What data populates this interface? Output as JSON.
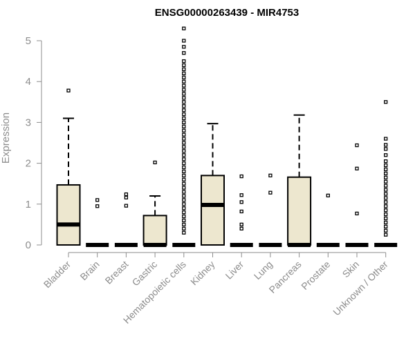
{
  "chart_data": {
    "type": "boxplot",
    "title": "ENSG00000263439 - MIR4753",
    "xlabel": "",
    "ylabel": "Expression",
    "ylim": [
      0,
      5.3
    ],
    "yticks": [
      0,
      1,
      2,
      3,
      4,
      5
    ],
    "grid": false,
    "box_color": "#ede7cf",
    "categories": [
      "Bladder",
      "Brain",
      "Breast",
      "Gastric",
      "Hematopoietic cells",
      "Kidney",
      "Liver",
      "Lung",
      "Pancreas",
      "Prostate",
      "Skin",
      "Unknown / Other"
    ],
    "boxes": [
      {
        "q1": 0,
        "median": 0.5,
        "q3": 1.47,
        "whisker_low": 0,
        "whisker_high": 3.1,
        "outliers": [
          3.78
        ]
      },
      {
        "q1": 0,
        "median": 0,
        "q3": 0,
        "whisker_low": 0,
        "whisker_high": 0,
        "outliers": [
          0.95,
          1.1
        ]
      },
      {
        "q1": 0,
        "median": 0,
        "q3": 0,
        "whisker_low": 0,
        "whisker_high": 0,
        "outliers": [
          0.96,
          1.16,
          1.24
        ]
      },
      {
        "q1": 0,
        "median": 0,
        "q3": 0.72,
        "whisker_low": 0,
        "whisker_high": 1.2,
        "outliers": [
          2.02
        ]
      },
      {
        "q1": 0,
        "median": 0,
        "q3": 0,
        "whisker_low": 0,
        "whisker_high": 0,
        "outliers": [
          0.3,
          0.4,
          0.5,
          0.6,
          0.7,
          0.8,
          0.9,
          1.0,
          1.1,
          1.2,
          1.3,
          1.4,
          1.5,
          1.6,
          1.7,
          1.8,
          1.9,
          2.0,
          2.1,
          2.2,
          2.3,
          2.4,
          2.5,
          2.6,
          2.7,
          2.8,
          2.9,
          3.0,
          3.1,
          3.2,
          3.3,
          3.4,
          3.5,
          3.6,
          3.7,
          3.8,
          3.9,
          4.0,
          4.1,
          4.2,
          4.3,
          4.4,
          4.5,
          4.7,
          4.85,
          5.0,
          5.3
        ]
      },
      {
        "q1": 0,
        "median": 0.98,
        "q3": 1.7,
        "whisker_low": 0,
        "whisker_high": 2.97,
        "outliers": []
      },
      {
        "q1": 0,
        "median": 0,
        "q3": 0,
        "whisker_low": 0,
        "whisker_high": 0,
        "outliers": [
          0.4,
          0.5,
          0.82,
          1.05,
          1.22,
          1.68
        ]
      },
      {
        "q1": 0,
        "median": 0,
        "q3": 0,
        "whisker_low": 0,
        "whisker_high": 0,
        "outliers": [
          1.28,
          1.7
        ]
      },
      {
        "q1": 0,
        "median": 0,
        "q3": 1.66,
        "whisker_low": 0,
        "whisker_high": 3.18,
        "outliers": []
      },
      {
        "q1": 0,
        "median": 0,
        "q3": 0,
        "whisker_low": 0,
        "whisker_high": 0,
        "outliers": [
          1.21
        ]
      },
      {
        "q1": 0,
        "median": 0,
        "q3": 0,
        "whisker_low": 0,
        "whisker_high": 0,
        "outliers": [
          0.77,
          1.87,
          2.44
        ]
      },
      {
        "q1": 0,
        "median": 0,
        "q3": 0,
        "whisker_low": 0,
        "whisker_high": 0,
        "outliers": [
          0.25,
          0.35,
          0.45,
          0.55,
          0.65,
          0.75,
          0.85,
          0.95,
          1.05,
          1.15,
          1.25,
          1.35,
          1.45,
          1.55,
          1.65,
          1.75,
          1.85,
          1.95,
          2.05,
          2.2,
          2.35,
          2.45,
          2.6,
          3.5
        ]
      }
    ]
  }
}
